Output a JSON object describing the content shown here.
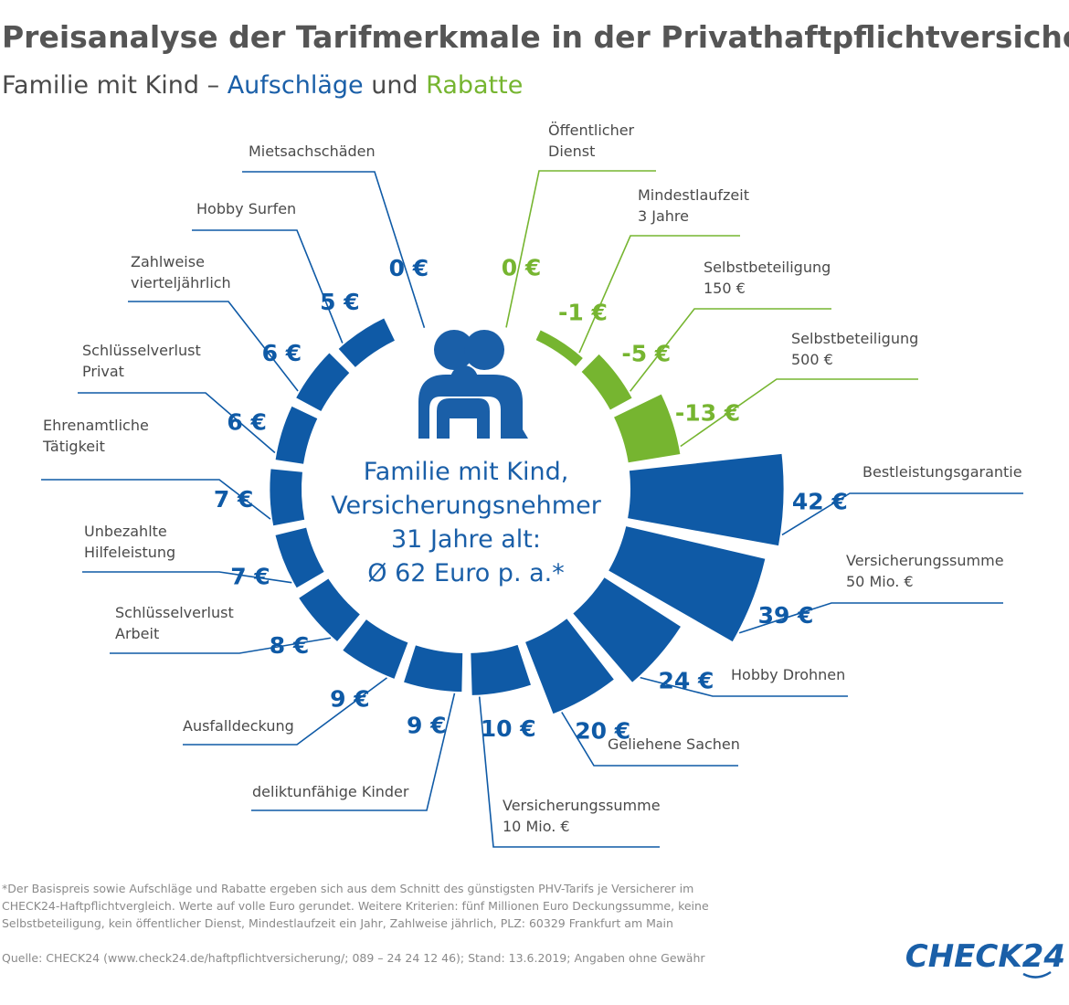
{
  "chart_data": {
    "type": "radial-bar",
    "title": "Preisanalyse der Tarifmerkmale in der Privathaftpflichtversicherung",
    "subtitle": [
      "Familie mit Kind – ",
      "Aufschläge",
      " und ",
      "Rabatte"
    ],
    "subtitle_colors": [
      "#4a4a4a",
      "#1a5fa8",
      "#4a4a4a",
      "#76b530"
    ],
    "categories": [
      "Öffentlicher\nDienst",
      "Mindestlaufzeit\n3 Jahre",
      "Selbstbeteiligung\n150 €",
      "Selbstbeteiligung\n500 €",
      "Bestleistungsgarantie",
      "Versicherungssumme\n50 Mio. €",
      "Hobby Drohnen",
      "Geliehene Sachen",
      "Versicherungssumme\n10 Mio. €",
      "deliktunfähige Kinder",
      "Ausfalldeckung",
      "Schlüsselverlust\nArbeit",
      "Unbezahlte\nHilfeleistung",
      "Ehrenamtliche\nTätigkeit",
      "Schlüsselverlust\nPrivat",
      "Zahlweise\nvierteljährlich",
      "Hobby Surfen",
      "Mietsachschäden"
    ],
    "values": [
      0,
      -1,
      -5,
      -13,
      42,
      39,
      24,
      20,
      10,
      9,
      9,
      8,
      7,
      7,
      6,
      6,
      5,
      0
    ],
    "value_labels": [
      "0 €",
      "-1 €",
      "-5 €",
      "-13 €",
      "42 €",
      "39 €",
      "24 €",
      "20 €",
      "10 €",
      "9 €",
      "9 €",
      "8 €",
      "7 €",
      "7 €",
      "6 €",
      "6 €",
      "5 €",
      "0 €"
    ],
    "colors": [
      "#76b530",
      "#76b530",
      "#76b530",
      "#76b530",
      "#0f5aa6",
      "#0f5aa6",
      "#0f5aa6",
      "#0f5aa6",
      "#0f5aa6",
      "#0f5aa6",
      "#0f5aa6",
      "#0f5aa6",
      "#0f5aa6",
      "#0f5aa6",
      "#0f5aa6",
      "#0f5aa6",
      "#0f5aa6",
      "#0f5aa6"
    ],
    "center_text": [
      "Familie mit Kind,",
      "Versicherungsnehmer",
      "31 Jahre alt:",
      "Ø 62 Euro p. a.*"
    ],
    "footnote": [
      "*Der Basispreis sowie Aufschläge und Rabatte ergeben sich aus dem Schnitt des günstigsten PHV-Tarifs je Versicherer im",
      "CHECK24-Haftpflichtvergleich. Werte auf volle Euro gerundet. Weitere Kriterien: fünf Millionen Euro Deckungssumme, keine",
      "Selbstbeteiligung, kein öffentlicher Dienst, Mindestlaufzeit ein Jahr, Zahlweise jährlich, PLZ: 60329 Frankfurt am Main"
    ],
    "source": "Quelle: CHECK24 (www.check24.de/haftpflichtversicherung/; 089 – 24 24 12 46); Stand: 13.6.2019; Angaben ohne Gewähr",
    "logo": "CHECK24"
  }
}
